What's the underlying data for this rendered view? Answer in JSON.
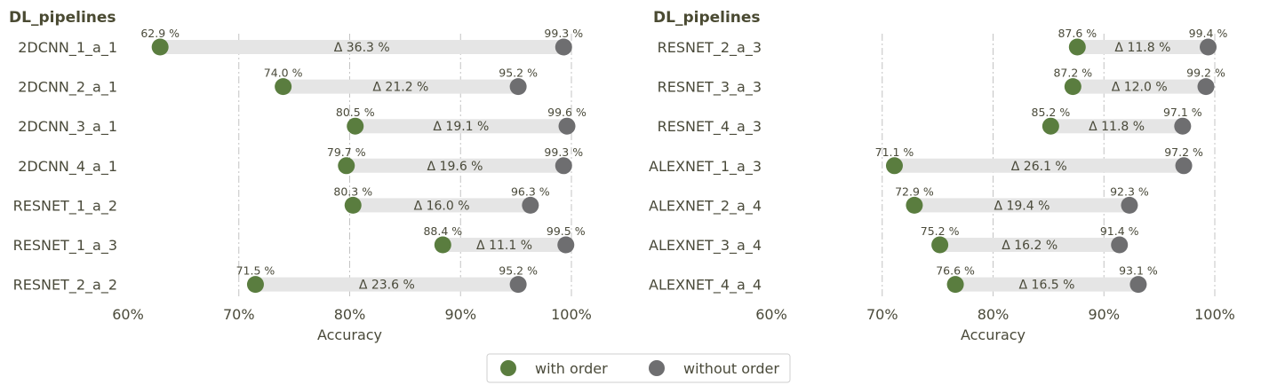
{
  "legend": {
    "with_label": "with order",
    "without_label": "without order",
    "placement": "bottom-center"
  },
  "colors": {
    "with": "#5a7d3f",
    "without": "#6e6e70",
    "bar": "#e5e5e5",
    "grid": "#c4c4c4",
    "text": "#4a4a3a",
    "title": "#4a4a32"
  },
  "chart_data": [
    {
      "type": "dumbbell",
      "title": "DL_pipelines",
      "xlabel": "Accuracy",
      "xlim": [
        60,
        100
      ],
      "xticks": [
        60,
        70,
        80,
        90,
        100
      ],
      "xtick_labels": [
        "60%",
        "70%",
        "80%",
        "90%",
        "100%"
      ],
      "grid": "vertical-dashed",
      "categories": [
        "2DCNN_1_a_1",
        "2DCNN_2_a_1",
        "2DCNN_3_a_1",
        "2DCNN_4_a_1",
        "RESNET_1_a_2",
        "RESNET_1_a_3",
        "RESNET_2_a_2"
      ],
      "series": [
        {
          "name": "with order",
          "values": [
            62.9,
            74.0,
            80.5,
            79.7,
            80.3,
            88.4,
            71.5
          ],
          "labels": [
            "62.9 %",
            "74.0 %",
            "80.5 %",
            "79.7 %",
            "80.3 %",
            "88.4 %",
            "71.5 %"
          ]
        },
        {
          "name": "without order",
          "values": [
            99.3,
            95.2,
            99.6,
            99.3,
            96.3,
            99.5,
            95.2
          ],
          "labels": [
            "99.3 %",
            "95.2 %",
            "99.6 %",
            "99.3 %",
            "96.3 %",
            "99.5 %",
            "95.2 %"
          ]
        }
      ],
      "delta_labels": [
        "Δ 36.3 %",
        "Δ 21.2 %",
        "Δ 19.1 %",
        "Δ 19.6 %",
        "Δ 16.0 %",
        "Δ 11.1 %",
        "Δ 23.6 %"
      ]
    },
    {
      "type": "dumbbell",
      "title": "DL_pipelines",
      "xlabel": "Accuracy",
      "xlim": [
        60,
        100
      ],
      "xticks": [
        60,
        70,
        80,
        90,
        100
      ],
      "xtick_labels": [
        "60%",
        "70%",
        "80%",
        "90%",
        "100%"
      ],
      "grid": "vertical-dashed",
      "categories": [
        "RESNET_2_a_3",
        "RESNET_3_a_3",
        "RESNET_4_a_3",
        "ALEXNET_1_a_3",
        "ALEXNET_2_a_4",
        "ALEXNET_3_a_4",
        "ALEXNET_4_a_4"
      ],
      "series": [
        {
          "name": "with order",
          "values": [
            87.6,
            87.2,
            85.2,
            71.1,
            72.9,
            75.2,
            76.6
          ],
          "labels": [
            "87.6 %",
            "87.2 %",
            "85.2 %",
            "71.1 %",
            "72.9 %",
            "75.2 %",
            "76.6 %"
          ]
        },
        {
          "name": "without order",
          "values": [
            99.4,
            99.2,
            97.1,
            97.2,
            92.3,
            91.4,
            93.1
          ],
          "labels": [
            "99.4 %",
            "99.2 %",
            "97.1 %",
            "97.2 %",
            "92.3 %",
            "91.4 %",
            "93.1 %"
          ]
        }
      ],
      "delta_labels": [
        "Δ 11.8 %",
        "Δ 12.0 %",
        "Δ 11.8 %",
        "Δ 26.1 %",
        "Δ 19.4 %",
        "Δ 16.2 %",
        "Δ 16.5 %"
      ]
    }
  ]
}
